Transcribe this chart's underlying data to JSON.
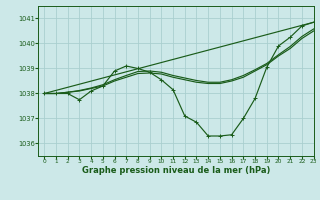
{
  "background_color": "#cce8e8",
  "grid_color": "#aacfcf",
  "line_color": "#1a5c1a",
  "title": "Graphe pression niveau de la mer (hPa)",
  "xlim": [
    -0.5,
    23
  ],
  "ylim": [
    1035.5,
    1041.5
  ],
  "yticks": [
    1036,
    1037,
    1038,
    1039,
    1040,
    1041
  ],
  "xticks": [
    0,
    1,
    2,
    3,
    4,
    5,
    6,
    7,
    8,
    9,
    10,
    11,
    12,
    13,
    14,
    15,
    16,
    17,
    18,
    19,
    20,
    21,
    22,
    23
  ],
  "series_main": {
    "x": [
      0,
      1,
      2,
      3,
      4,
      5,
      6,
      7,
      8,
      9,
      10,
      11,
      12,
      13,
      14,
      15,
      16,
      17,
      18,
      19,
      20,
      21,
      22,
      23
    ],
    "y": [
      1038.0,
      1038.0,
      1038.0,
      1037.75,
      1038.1,
      1038.3,
      1038.9,
      1039.1,
      1039.0,
      1038.85,
      1038.55,
      1038.15,
      1037.1,
      1036.85,
      1036.3,
      1036.3,
      1036.35,
      1037.0,
      1037.8,
      1039.05,
      1039.9,
      1040.25,
      1040.7,
      1040.85
    ]
  },
  "series_trend1": {
    "x": [
      0,
      1,
      2,
      3,
      4,
      5,
      6,
      7,
      8,
      9,
      10,
      11,
      12,
      13,
      14,
      15,
      16,
      17,
      18,
      19,
      20,
      21,
      22,
      23
    ],
    "y": [
      1038.0,
      1038.0,
      1038.05,
      1038.1,
      1038.2,
      1038.3,
      1038.5,
      1038.65,
      1038.8,
      1038.82,
      1038.78,
      1038.65,
      1038.55,
      1038.45,
      1038.4,
      1038.4,
      1038.5,
      1038.65,
      1038.9,
      1039.15,
      1039.5,
      1039.8,
      1040.2,
      1040.5
    ]
  },
  "series_trend2": {
    "x": [
      0,
      1,
      2,
      3,
      4,
      5,
      6,
      7,
      8,
      9,
      10,
      11,
      12,
      13,
      14,
      15,
      16,
      17,
      18,
      19,
      20,
      21,
      22,
      23
    ],
    "y": [
      1038.0,
      1038.0,
      1038.05,
      1038.12,
      1038.22,
      1038.35,
      1038.55,
      1038.72,
      1038.88,
      1038.9,
      1038.85,
      1038.72,
      1038.62,
      1038.52,
      1038.45,
      1038.45,
      1038.55,
      1038.72,
      1038.95,
      1039.2,
      1039.55,
      1039.88,
      1040.28,
      1040.58
    ]
  },
  "series_straight": {
    "x": [
      0,
      23
    ],
    "y": [
      1038.0,
      1040.85
    ]
  }
}
